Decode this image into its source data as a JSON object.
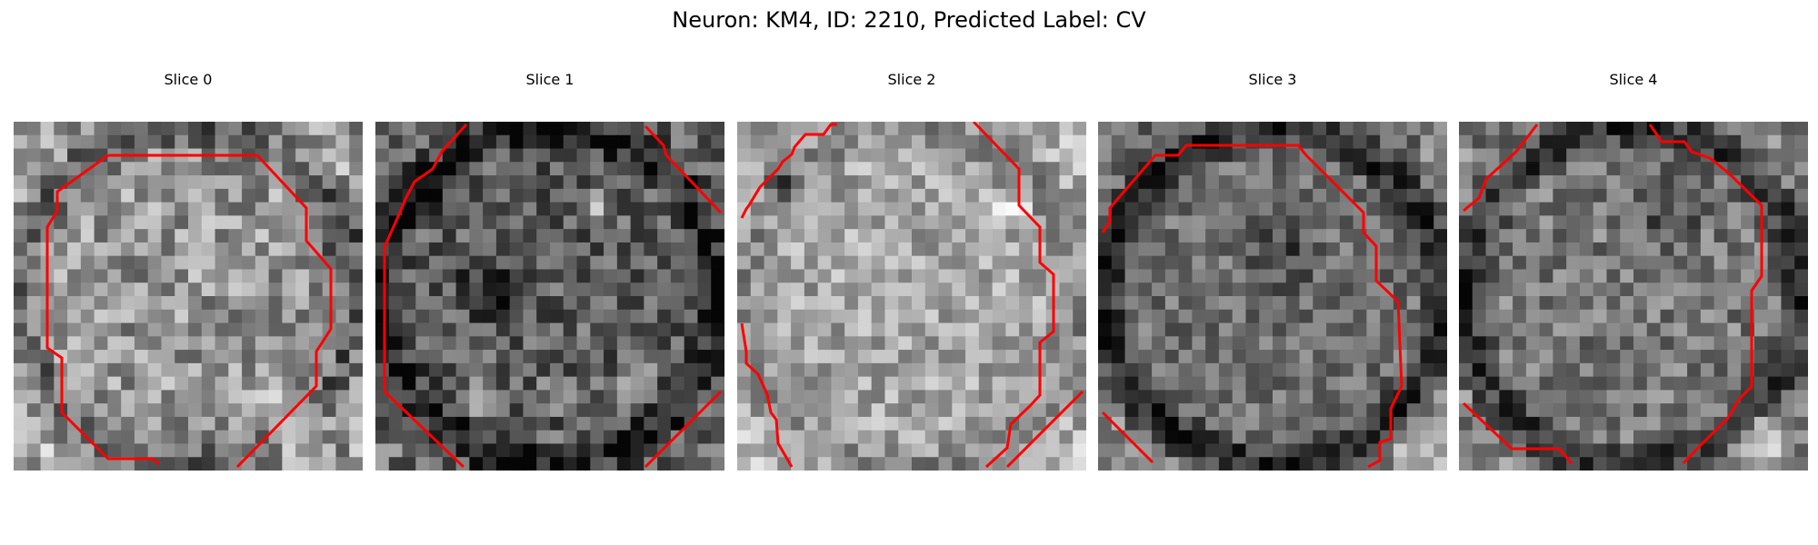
{
  "figure": {
    "title": "Neuron: KM4, ID: 2210, Predicted Label: CV",
    "contour_color": "#ff0000"
  },
  "panels": [
    {
      "title": "Slice 0"
    },
    {
      "title": "Slice 1"
    },
    {
      "title": "Slice 2"
    },
    {
      "title": "Slice 3"
    },
    {
      "title": "Slice 4"
    }
  ]
}
